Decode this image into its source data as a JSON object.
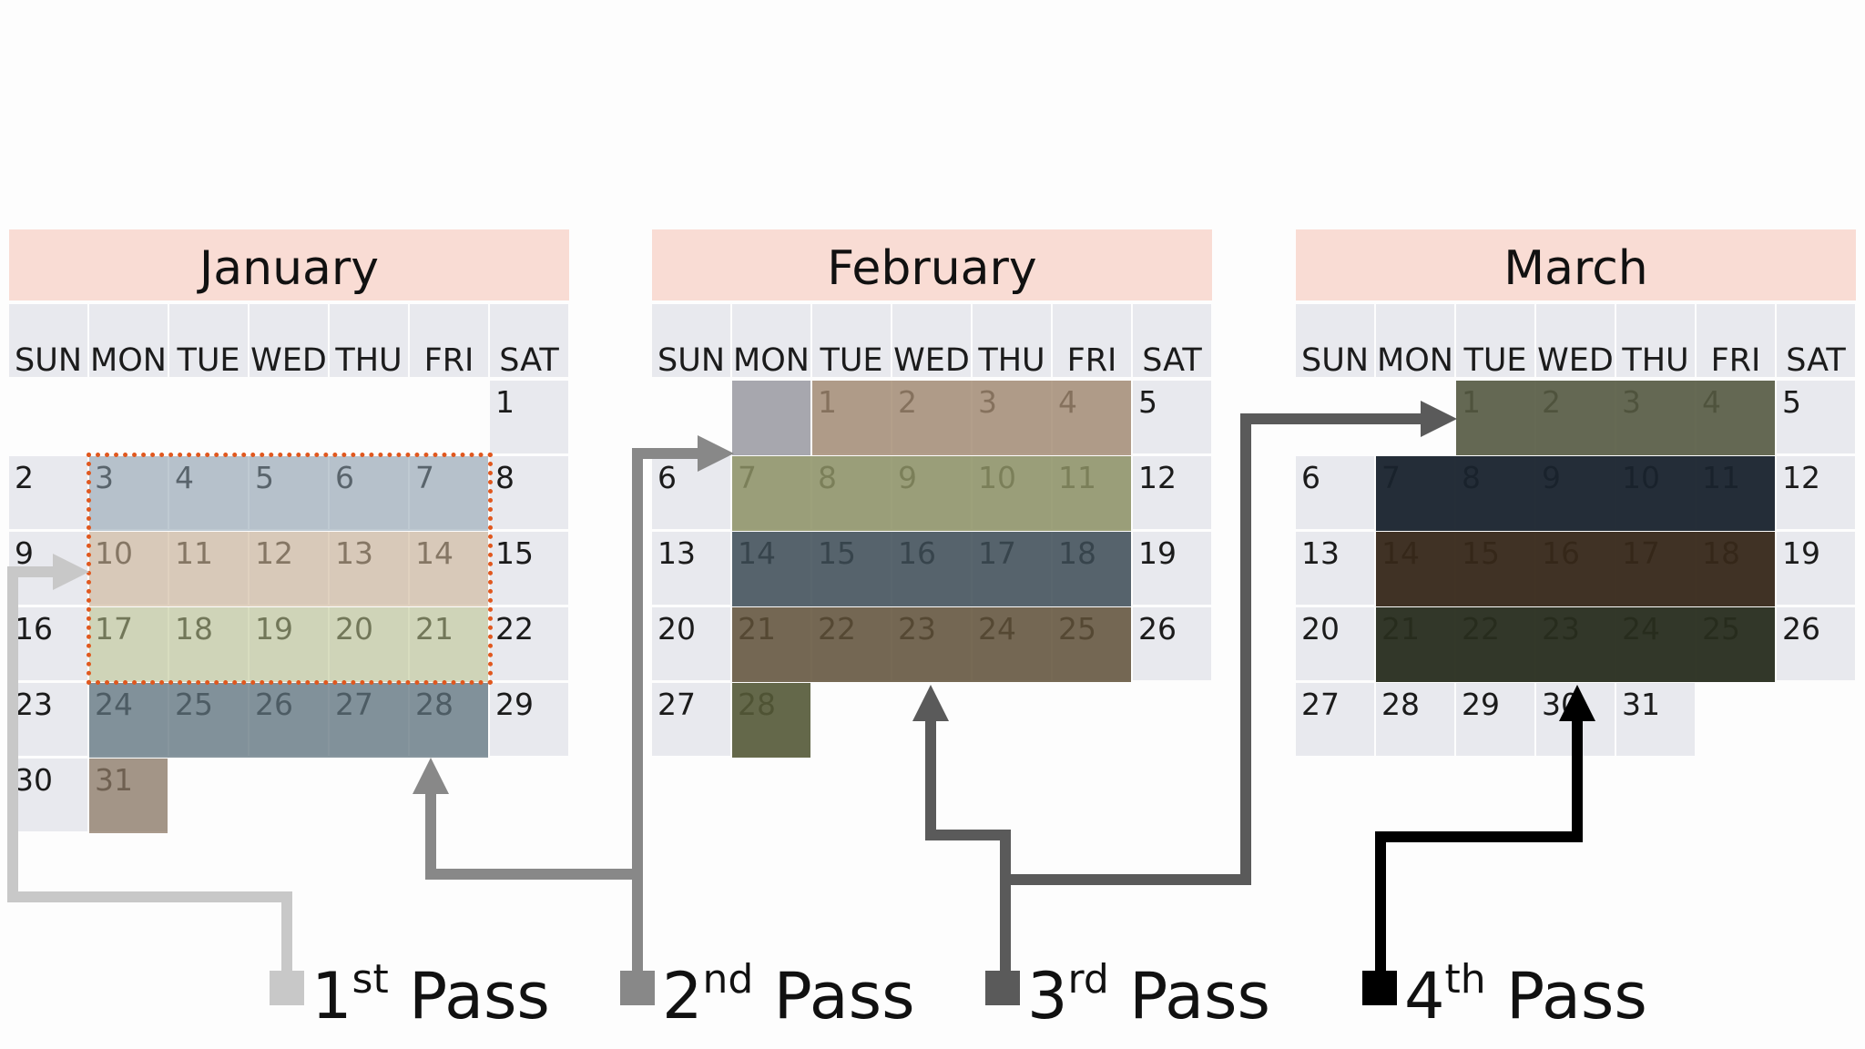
{
  "weekdays": [
    "SUN",
    "MON",
    "TUE",
    "WED",
    "THU",
    "FRI",
    "SAT"
  ],
  "months": [
    {
      "name": "January",
      "weeks": [
        [
          "",
          "",
          "",
          "",
          "",
          "",
          "1"
        ],
        [
          "2",
          "3",
          "4",
          "5",
          "6",
          "7",
          "8"
        ],
        [
          "9",
          "10",
          "11",
          "12",
          "13",
          "14",
          "15"
        ],
        [
          "16",
          "17",
          "18",
          "19",
          "20",
          "21",
          "22"
        ],
        [
          "23",
          "24",
          "25",
          "26",
          "27",
          "28",
          "29"
        ],
        [
          "30",
          "31",
          "",
          "",
          "",
          "",
          ""
        ]
      ]
    },
    {
      "name": "February",
      "weeks": [
        [
          "",
          "",
          "1",
          "2",
          "3",
          "4",
          "5"
        ],
        [
          "6",
          "7",
          "8",
          "9",
          "10",
          "11",
          "12"
        ],
        [
          "13",
          "14",
          "15",
          "16",
          "17",
          "18",
          "19"
        ],
        [
          "20",
          "21",
          "22",
          "23",
          "24",
          "25",
          "26"
        ],
        [
          "27",
          "28",
          "",
          "",
          "",
          "",
          ""
        ]
      ]
    },
    {
      "name": "March",
      "weeks": [
        [
          "",
          "",
          "1",
          "2",
          "3",
          "4",
          "5"
        ],
        [
          "6",
          "7",
          "8",
          "9",
          "10",
          "11",
          "12"
        ],
        [
          "13",
          "14",
          "15",
          "16",
          "17",
          "18",
          "19"
        ],
        [
          "20",
          "21",
          "22",
          "23",
          "24",
          "25",
          "26"
        ],
        [
          "27",
          "28",
          "29",
          "30",
          "31",
          "",
          ""
        ]
      ]
    }
  ],
  "passes": [
    {
      "number": "1",
      "suffix": "st",
      "word": "Pass",
      "color": "#c8c8c8"
    },
    {
      "number": "2",
      "suffix": "nd",
      "word": "Pass",
      "color": "#888888"
    },
    {
      "number": "3",
      "suffix": "rd",
      "word": "Pass",
      "color": "#5a5a5a"
    },
    {
      "number": "4",
      "suffix": "th",
      "word": "Pass",
      "color": "#000000"
    }
  ],
  "colors": {
    "header_bg": "#f9dcd4",
    "cell_bg": "#e8e9ee",
    "selection_border": "#e0581f",
    "band_blue": "#a9b8c4",
    "band_tan": "#d8c7b6",
    "band_olive": "#cdd3b3",
    "band_slate": "#7b8c94",
    "band_brown": "#a39484"
  }
}
